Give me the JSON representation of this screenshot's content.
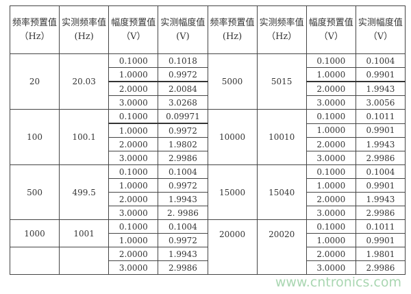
{
  "headers": [
    "频率预置值（Hz）",
    "实测频率值(Hz)",
    "幅度预置值（V）",
    "实测幅度值(V)",
    "频率预置值(Hz)",
    "实测频率值（Hz）",
    "幅度预置值（V）",
    "实测幅度值（V）"
  ],
  "groups": [
    {
      "set_freq_l": "20",
      "meas_freq_l": "20.03",
      "set_freq_r": "5000",
      "meas_freq_r": "5015",
      "rows": [
        [
          "0.1000",
          "0.1018",
          "0.1000",
          "0.1004"
        ],
        [
          "1.0000",
          "0.9972",
          "1.0000",
          "0.9901"
        ],
        [
          "2.0000",
          "2.0084",
          "2.0000",
          "1.9943"
        ],
        [
          "3.0000",
          "3.0268",
          "3.0000",
          "3.0056"
        ]
      ]
    },
    {
      "set_freq_l": "100",
      "meas_freq_l": "100.1",
      "set_freq_r": "10000",
      "meas_freq_r": "10010",
      "rows": [
        [
          "0.1000",
          "0.09971",
          "0.1000",
          "0.1011"
        ],
        [
          "1.0000",
          "0.9972",
          "1.0000",
          "0.9901"
        ],
        [
          "2.0000",
          "1.9802",
          "2.0000",
          "1.9943"
        ],
        [
          "3.0000",
          "2.9986",
          "3.0000",
          "2.9986"
        ]
      ]
    },
    {
      "set_freq_l": "500",
      "meas_freq_l": "499.5",
      "set_freq_r": "15000",
      "meas_freq_r": "15040",
      "rows": [
        [
          "0.1000",
          "0.1004",
          "0.1000",
          "0.1004"
        ],
        [
          "1.0000",
          "0.9972",
          "1.0000",
          "0.9901"
        ],
        [
          "2.0000",
          "1.9943",
          "2.0000",
          "1.9943"
        ],
        [
          "3.0000",
          "2. 9986",
          "3.0000",
          "2.9986"
        ]
      ]
    },
    {
      "set_freq_l": "1000",
      "meas_freq_l": "1001",
      "set_freq_r": "20000",
      "meas_freq_r": "20020",
      "rows": [
        [
          "0.1000",
          "0.1004",
          "0.1000",
          "0.1011"
        ],
        [
          "1.0000",
          "0.9972",
          "1.0000",
          "0.9901"
        ],
        [
          "2.0000",
          "1.9943",
          "2.0000",
          "1.9801"
        ],
        [
          "3.0000",
          "2.9986",
          "3.0000",
          "2.9986"
        ]
      ]
    }
  ],
  "watermark": "www.cntronics.com"
}
